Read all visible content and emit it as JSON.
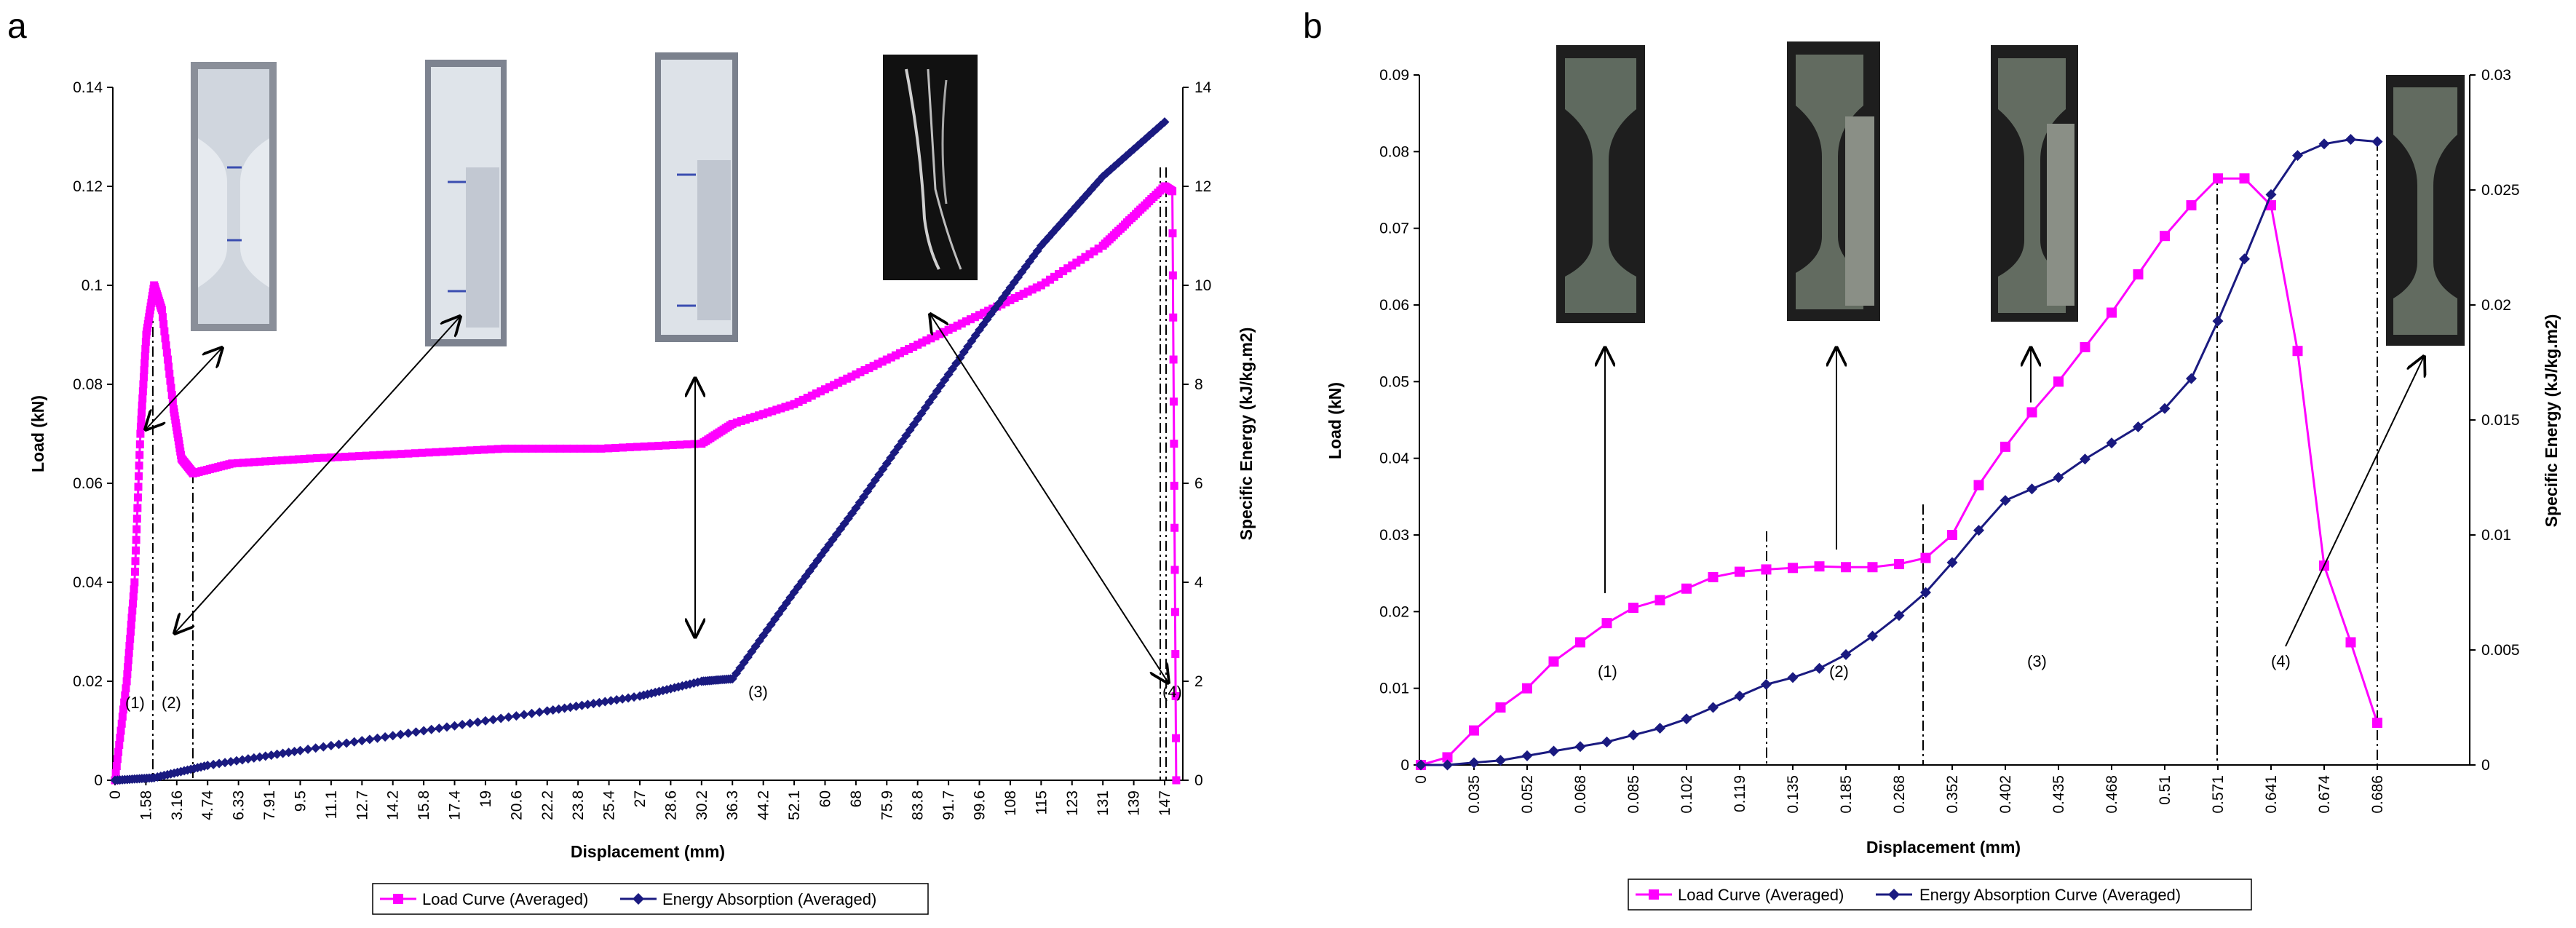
{
  "chart_data": [
    {
      "panel": "a",
      "type": "line",
      "xlabel": "Displacement (mm)",
      "ylabel": "Load (kN)",
      "y2label": "Specific Energy (kJ/kg.m2)",
      "ylim": [
        0,
        0.14
      ],
      "y2lim": [
        0,
        14
      ],
      "yticks": [
        "0",
        "0.02",
        "0.04",
        "0.06",
        "0.08",
        "0.1",
        "0.12",
        "0.14"
      ],
      "y2ticks": [
        "0",
        "2",
        "4",
        "6",
        "8",
        "10",
        "12",
        "14"
      ],
      "xticks": [
        "0",
        "1.58",
        "3.16",
        "4.74",
        "6.33",
        "7.91",
        "9.5",
        "11.1",
        "12.7",
        "14.2",
        "15.8",
        "17.4",
        "19",
        "20.6",
        "22.2",
        "23.8",
        "25.4",
        "27",
        "28.6",
        "30.2",
        "36.3",
        "44.2",
        "52.1",
        "60",
        "68",
        "75.9",
        "83.8",
        "91.7",
        "99.6",
        "108",
        "115",
        "123",
        "131",
        "139",
        "147"
      ],
      "annotations": [
        "(1)",
        "(2)",
        "(3)",
        "(4)"
      ],
      "series": [
        {
          "name": "Load Curve (Averaged)",
          "axis": "left",
          "color": "#ff00ff",
          "marker": "square",
          "points": [
            [
              0,
              0
            ],
            [
              0.6,
              0.02
            ],
            [
              1.0,
              0.04
            ],
            [
              1.3,
              0.07
            ],
            [
              1.6,
              0.09
            ],
            [
              2.0,
              0.1
            ],
            [
              2.4,
              0.095
            ],
            [
              3.0,
              0.075
            ],
            [
              3.4,
              0.065
            ],
            [
              4.0,
              0.062
            ],
            [
              6.0,
              0.064
            ],
            [
              10.0,
              0.065
            ],
            [
              15.0,
              0.066
            ],
            [
              20.0,
              0.067
            ],
            [
              25.0,
              0.067
            ],
            [
              30.2,
              0.068
            ],
            [
              36.3,
              0.072
            ],
            [
              52.1,
              0.076
            ],
            [
              68,
              0.082
            ],
            [
              83.8,
              0.088
            ],
            [
              99.6,
              0.094
            ],
            [
              115,
              0.1
            ],
            [
              131,
              0.108
            ],
            [
              139,
              0.114
            ],
            [
              147,
              0.12
            ],
            [
              149,
              0.119
            ],
            [
              150,
              0.0
            ]
          ]
        },
        {
          "name": "Energy Absorption (Averaged)",
          "axis": "right",
          "color": "#1a1a80",
          "marker": "diamond",
          "points": [
            [
              0,
              0
            ],
            [
              2.0,
              0.05
            ],
            [
              4.74,
              0.3
            ],
            [
              9.5,
              0.6
            ],
            [
              15.8,
              1.0
            ],
            [
              22.2,
              1.4
            ],
            [
              27,
              1.7
            ],
            [
              30.2,
              2.0
            ],
            [
              36.3,
              2.05
            ],
            [
              52.1,
              3.8
            ],
            [
              68,
              5.5
            ],
            [
              83.8,
              7.3
            ],
            [
              99.6,
              9.1
            ],
            [
              115,
              10.8
            ],
            [
              131,
              12.2
            ],
            [
              147,
              13.3
            ]
          ]
        }
      ],
      "legend": [
        "Load Curve (Averaged)",
        "Energy Absorption (Averaged)"
      ]
    },
    {
      "panel": "b",
      "type": "line",
      "xlabel": "Displacement (mm)",
      "ylabel": "Load (kN)",
      "y2label": "Specific Energy (kJ/kg.m2)",
      "ylim": [
        0,
        0.09
      ],
      "y2lim": [
        0,
        0.03
      ],
      "yticks": [
        "0",
        "0.01",
        "0.02",
        "0.03",
        "0.04",
        "0.05",
        "0.06",
        "0.07",
        "0.08",
        "0.09"
      ],
      "y2ticks": [
        "0",
        "0.005",
        "0.01",
        "0.015",
        "0.02",
        "0.025",
        "0.03"
      ],
      "xticks": [
        "0",
        "0.035",
        "0.052",
        "0.068",
        "0.085",
        "0.102",
        "0.119",
        "0.135",
        "0.185",
        "0.268",
        "0.352",
        "0.402",
        "0.435",
        "0.468",
        "0.51",
        "0.571",
        "0.641",
        "0.674",
        "0.686"
      ],
      "annotations": [
        "(1)",
        "(2)",
        "(3)",
        "(4)"
      ],
      "series": [
        {
          "name": "Load Curve (Averaged)",
          "axis": "left",
          "color": "#ff00ff",
          "marker": "square",
          "values": [
            0,
            0.001,
            0.0045,
            0.0075,
            0.01,
            0.0135,
            0.016,
            0.0185,
            0.0205,
            0.0215,
            0.023,
            0.0245,
            0.0252,
            0.0255,
            0.0257,
            0.0259,
            0.0258,
            0.0258,
            0.0262,
            0.027,
            0.03,
            0.0365,
            0.0415,
            0.046,
            0.05,
            0.0545,
            0.059,
            0.064,
            0.069,
            0.073,
            0.0765,
            0.0765,
            0.073,
            0.054,
            0.026,
            0.016,
            0.0055
          ]
        },
        {
          "name": "Energy Absorption Curve (Averaged)",
          "axis": "right",
          "color": "#1a1a80",
          "marker": "diamond",
          "values": [
            0,
            0,
            0.0001,
            0.0002,
            0.0004,
            0.0006,
            0.0008,
            0.001,
            0.0013,
            0.0016,
            0.002,
            0.0025,
            0.003,
            0.0035,
            0.0038,
            0.0042,
            0.0048,
            0.0056,
            0.0065,
            0.0075,
            0.0088,
            0.0102,
            0.0115,
            0.012,
            0.0125,
            0.0133,
            0.014,
            0.0147,
            0.0155,
            0.0168,
            0.0193,
            0.022,
            0.0248,
            0.0265,
            0.027,
            0.0272,
            0.0271
          ]
        }
      ],
      "legend": [
        "Load Curve (Averaged)",
        "Energy Absorption Curve (Averaged)"
      ]
    }
  ]
}
